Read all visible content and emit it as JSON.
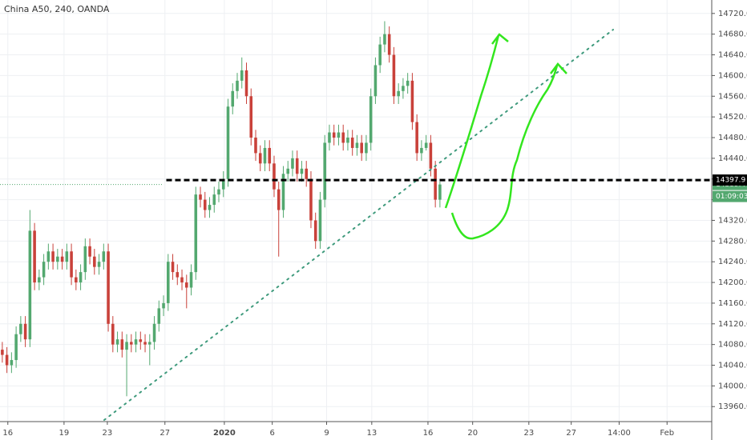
{
  "chart_data": {
    "type": "candlestick",
    "title": "China A50, 240, OANDA",
    "up_color": "#53a86f",
    "down_color": "#c9413a",
    "open": [
      14070,
      14060,
      14040,
      14050,
      14100,
      14120,
      14090,
      14300,
      14200,
      14210,
      14240,
      14260,
      14240,
      14250,
      14240,
      14260,
      14210,
      14200,
      14220,
      14270,
      14250,
      14230,
      14240,
      14260,
      14120,
      14080,
      14090,
      14070,
      14085,
      14080,
      14090,
      14085,
      14080,
      14085,
      14120,
      14150,
      14160,
      14240,
      14220,
      14210,
      14200,
      14190,
      14220,
      14370,
      14360,
      14340,
      14350,
      14370,
      14380,
      14400,
      14540,
      14570,
      14590,
      14610,
      14560,
      14480,
      14450,
      14430,
      14460,
      14430,
      14380,
      14340,
      14410,
      14420,
      14440,
      14410,
      14420,
      14400,
      14320,
      14280,
      14360,
      14470,
      14490,
      14480,
      14490,
      14470,
      14480,
      14460,
      14470,
      14450,
      14470,
      14560,
      14620,
      14660,
      14680,
      14640,
      14560,
      14570,
      14580,
      14590,
      14510,
      14450,
      14460,
      14470,
      14420,
      14360
    ],
    "high": [
      14085,
      14075,
      14065,
      14115,
      14135,
      14135,
      14340,
      14315,
      14225,
      14255,
      14275,
      14275,
      14265,
      14265,
      14275,
      14275,
      14225,
      14235,
      14285,
      14285,
      14265,
      14255,
      14275,
      14275,
      14135,
      14105,
      14105,
      14100,
      14100,
      14105,
      14105,
      14100,
      14100,
      14135,
      14165,
      14175,
      14255,
      14255,
      14235,
      14225,
      14215,
      14235,
      14385,
      14385,
      14375,
      14365,
      14385,
      14395,
      14415,
      14555,
      14585,
      14605,
      14635,
      14625,
      14575,
      14495,
      14465,
      14475,
      14475,
      14445,
      14395,
      14425,
      14435,
      14455,
      14455,
      14435,
      14435,
      14415,
      14335,
      14375,
      14485,
      14505,
      14505,
      14505,
      14505,
      14495,
      14495,
      14485,
      14485,
      14485,
      14575,
      14635,
      14675,
      14705,
      14695,
      14655,
      14585,
      14595,
      14605,
      14605,
      14525,
      14475,
      14485,
      14485,
      14435,
      14395
    ],
    "low": [
      14045,
      14025,
      14025,
      14035,
      14085,
      14075,
      14075,
      14185,
      14185,
      14195,
      14225,
      14225,
      14225,
      14225,
      14225,
      14195,
      14185,
      14185,
      14205,
      14235,
      14215,
      14215,
      14225,
      14105,
      14065,
      14065,
      14055,
      13980,
      14065,
      14065,
      14070,
      14065,
      14040,
      14070,
      14105,
      14135,
      14145,
      14205,
      14195,
      14185,
      14150,
      14175,
      14205,
      14345,
      14325,
      14325,
      14335,
      14355,
      14365,
      14385,
      14525,
      14555,
      14575,
      14545,
      14465,
      14435,
      14415,
      14415,
      14415,
      14365,
      14250,
      14325,
      14395,
      14405,
      14395,
      14395,
      14385,
      14305,
      14265,
      14265,
      14345,
      14455,
      14465,
      14465,
      14455,
      14455,
      14445,
      14445,
      14435,
      14435,
      14455,
      14545,
      14605,
      14645,
      14625,
      14545,
      14545,
      14555,
      14565,
      14495,
      14435,
      14435,
      14455,
      14405,
      14345,
      14345
    ],
    "close": [
      14060,
      14040,
      14050,
      14100,
      14120,
      14090,
      14300,
      14200,
      14210,
      14240,
      14260,
      14240,
      14250,
      14240,
      14260,
      14210,
      14200,
      14220,
      14270,
      14250,
      14230,
      14240,
      14260,
      14120,
      14080,
      14090,
      14070,
      14085,
      14080,
      14090,
      14085,
      14080,
      14085,
      14120,
      14150,
      14160,
      14240,
      14220,
      14210,
      14200,
      14190,
      14220,
      14370,
      14360,
      14340,
      14350,
      14370,
      14380,
      14400,
      14540,
      14570,
      14590,
      14610,
      14560,
      14480,
      14450,
      14430,
      14460,
      14430,
      14380,
      14340,
      14410,
      14420,
      14440,
      14410,
      14420,
      14400,
      14320,
      14280,
      14360,
      14470,
      14490,
      14480,
      14490,
      14470,
      14480,
      14460,
      14470,
      14450,
      14470,
      14560,
      14620,
      14660,
      14680,
      14640,
      14560,
      14570,
      14580,
      14590,
      14510,
      14450,
      14460,
      14470,
      14420,
      14360,
      14389.4
    ],
    "countdown": "01:09:03",
    "level": {
      "value": 14397.9,
      "label": "14397.9"
    },
    "xlim": [
      -0.5,
      154
    ],
    "ylim": [
      13931,
      14746
    ],
    "xticks": [
      {
        "value": 1.2,
        "label": "16"
      },
      {
        "value": 13.4,
        "label": "19"
      },
      {
        "value": 22.8,
        "label": "23"
      },
      {
        "value": 35.3,
        "label": "27"
      },
      {
        "value": 48.2,
        "label": "2020"
      },
      {
        "value": 58.6,
        "label": "6"
      },
      {
        "value": 70.4,
        "label": "9"
      },
      {
        "value": 80.2,
        "label": "13"
      },
      {
        "value": 92.4,
        "label": "16"
      },
      {
        "value": 102.1,
        "label": "20"
      },
      {
        "value": 114.3,
        "label": "23"
      },
      {
        "value": 123.5,
        "label": "27"
      },
      {
        "value": 133.9,
        "label": "14:00"
      },
      {
        "value": 144.3,
        "label": "Feb"
      }
    ],
    "yticks": [
      {
        "value": 13960,
        "label": "13960.0"
      },
      {
        "value": 14000,
        "label": "14000.0"
      },
      {
        "value": 14040,
        "label": "14040.0"
      },
      {
        "value": 14080,
        "label": "14080.0"
      },
      {
        "value": 14120,
        "label": "14120.0"
      },
      {
        "value": 14160,
        "label": "14160.0"
      },
      {
        "value": 14200,
        "label": "14200.0"
      },
      {
        "value": 14240,
        "label": "14240.0"
      },
      {
        "value": 14280,
        "label": "14280.0"
      },
      {
        "value": 14320,
        "label": "14320.0"
      },
      {
        "value": 14360,
        "label": "14360.0"
      },
      {
        "value": 14400,
        "label": "14400.0"
      },
      {
        "value": 14440,
        "label": "14440.0"
      },
      {
        "value": 14480,
        "label": "14480.0"
      },
      {
        "value": 14520,
        "label": "14520.0"
      },
      {
        "value": 14560,
        "label": "14560.0"
      },
      {
        "value": 14600,
        "label": "14600.0"
      },
      {
        "value": 14640,
        "label": "14640.0"
      },
      {
        "value": 14680,
        "label": "14680.0"
      },
      {
        "value": 14720,
        "label": "14720.0"
      }
    ],
    "grid": true
  }
}
